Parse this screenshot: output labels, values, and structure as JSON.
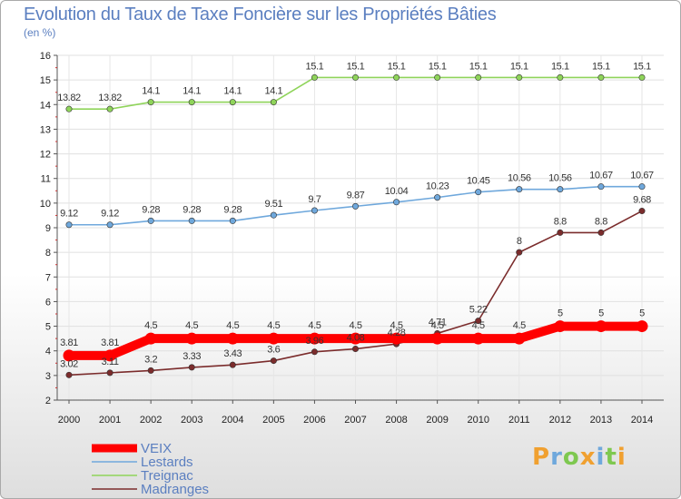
{
  "chart_data": {
    "type": "line",
    "title": "Evolution du Taux de Taxe Foncière sur les Propriétés Bâties",
    "ylabel": "(en %)",
    "xlabel": "",
    "x": [
      "2000",
      "2001",
      "2002",
      "2003",
      "2004",
      "2005",
      "2006",
      "2007",
      "2008",
      "2009",
      "2010",
      "2011",
      "2012",
      "2013",
      "2014"
    ],
    "ylim": [
      2,
      16
    ],
    "yticks": [
      "2",
      "3",
      "4",
      "5",
      "6",
      "7",
      "8",
      "9",
      "10",
      "11",
      "12",
      "13",
      "14",
      "15",
      "16"
    ],
    "series": [
      {
        "name": "VEIX",
        "color": "#ff0000",
        "values": [
          3.81,
          3.81,
          4.5,
          4.5,
          4.5,
          4.5,
          4.5,
          4.5,
          4.5,
          4.5,
          4.5,
          4.5,
          5,
          5,
          5
        ],
        "labels": [
          "3.81",
          "3.81",
          "4.5",
          "4.5",
          "4.5",
          "4.5",
          "4.5",
          "4.5",
          "4.5",
          "4.5",
          "4.5",
          "4.5",
          "5",
          "5",
          "5"
        ]
      },
      {
        "name": "Lestards",
        "color": "#6fa8dc",
        "values": [
          9.12,
          9.12,
          9.28,
          9.28,
          9.28,
          9.51,
          9.7,
          9.87,
          10.04,
          10.23,
          10.45,
          10.56,
          10.56,
          10.67,
          10.67
        ],
        "labels": [
          "9.12",
          "9.12",
          "9.28",
          "9.28",
          "9.28",
          "9.51",
          "9.7",
          "9.87",
          "10.04",
          "10.23",
          "10.45",
          "10.56",
          "10.56",
          "10.67",
          "10.67"
        ]
      },
      {
        "name": "Treignac",
        "color": "#8fd45a",
        "values": [
          13.82,
          13.82,
          14.1,
          14.1,
          14.1,
          14.1,
          15.1,
          15.1,
          15.1,
          15.1,
          15.1,
          15.1,
          15.1,
          15.1,
          15.1
        ],
        "labels": [
          "13.82",
          "13.82",
          "14.1",
          "14.1",
          "14.1",
          "14.1",
          "15.1",
          "15.1",
          "15.1",
          "15.1",
          "15.1",
          "15.1",
          "15.1",
          "15.1",
          "15.1"
        ]
      },
      {
        "name": "Madranges",
        "color": "#7b2c2c",
        "values": [
          3.02,
          3.11,
          3.2,
          3.33,
          3.43,
          3.6,
          3.96,
          4.08,
          4.28,
          4.71,
          5.22,
          8,
          8.8,
          8.8,
          9.68
        ],
        "labels": [
          "3.02",
          "3.11",
          "3.2",
          "3.33",
          "3.43",
          "3.6",
          "3.96",
          "4.08",
          "4.28",
          "4.71",
          "5.22",
          "8",
          "8.8",
          "8.8",
          "9.68"
        ]
      }
    ],
    "legend_position": "bottom-left"
  },
  "logo": {
    "text": "Proxiti",
    "letters": [
      {
        "ch": "P",
        "color": "#f0a030"
      },
      {
        "ch": "r",
        "color": "#6fa8dc"
      },
      {
        "ch": "o",
        "color": "#7ec850"
      },
      {
        "ch": "x",
        "color": "#f0a030"
      },
      {
        "ch": "i",
        "color": "#6fa8dc"
      },
      {
        "ch": "t",
        "color": "#7ec850"
      },
      {
        "ch": "i",
        "color": "#f0a030"
      }
    ]
  }
}
